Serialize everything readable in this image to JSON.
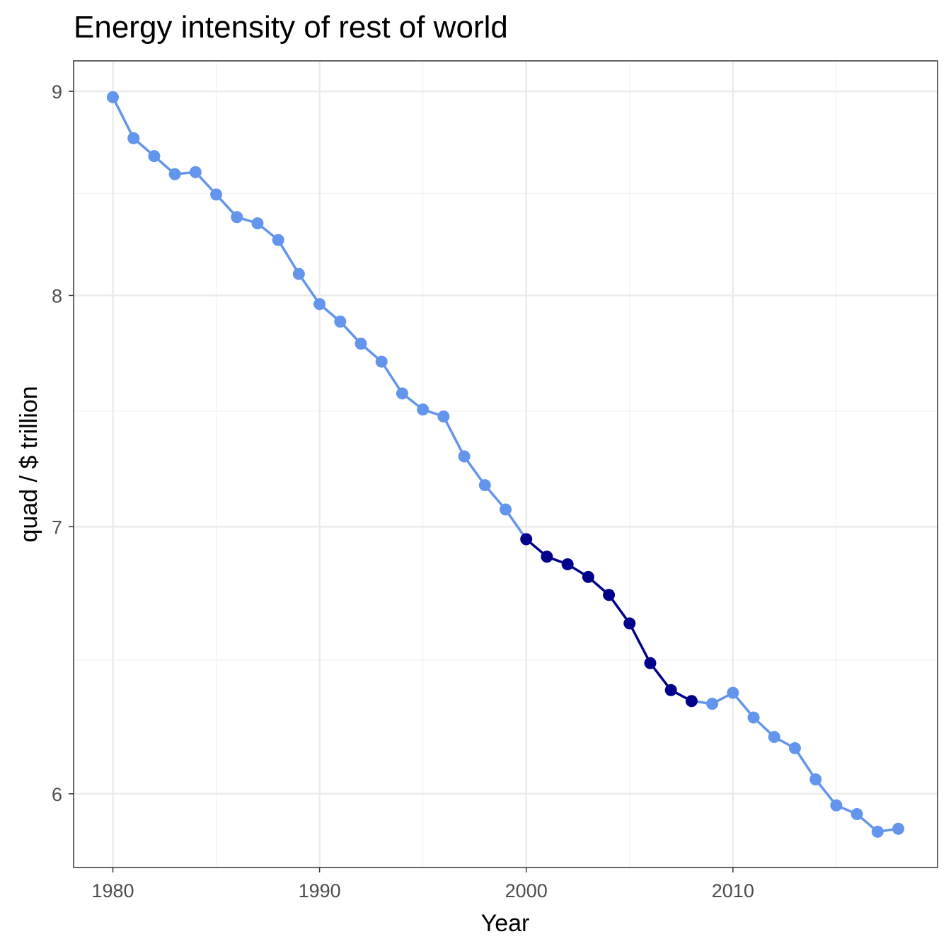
{
  "chart_data": {
    "type": "line",
    "title": "Energy intensity of rest of world",
    "xlabel": "Year",
    "ylabel": "quad / $ trillion",
    "y_scale": "log",
    "xlim": [
      1978.1,
      2019.9
    ],
    "ylim": [
      5.75,
      9.16
    ],
    "x_ticks": [
      1980,
      1990,
      2000,
      2010
    ],
    "y_ticks": [
      6,
      7,
      8,
      9
    ],
    "grid": true,
    "colors": {
      "base": "#6495ED",
      "highlight": "#00008B"
    },
    "highlight_range": [
      2000,
      2008
    ],
    "x": [
      1980,
      1981,
      1982,
      1983,
      1984,
      1985,
      1986,
      1987,
      1988,
      1989,
      1990,
      1991,
      1992,
      1993,
      1994,
      1995,
      1996,
      1997,
      1998,
      1999,
      2000,
      2001,
      2002,
      2003,
      2004,
      2005,
      2006,
      2007,
      2008,
      2009,
      2010,
      2011,
      2012,
      2013,
      2014,
      2015,
      2016,
      2017,
      2018
    ],
    "y": [
      8.97,
      8.76,
      8.67,
      8.58,
      8.59,
      8.48,
      8.37,
      8.34,
      8.26,
      8.1,
      7.96,
      7.88,
      7.78,
      7.7,
      7.56,
      7.49,
      7.46,
      7.29,
      7.17,
      7.07,
      6.95,
      6.88,
      6.85,
      6.8,
      6.73,
      6.62,
      6.47,
      6.37,
      6.33,
      6.32,
      6.36,
      6.27,
      6.2,
      6.16,
      6.05,
      5.96,
      5.93,
      5.87,
      5.88
    ]
  }
}
